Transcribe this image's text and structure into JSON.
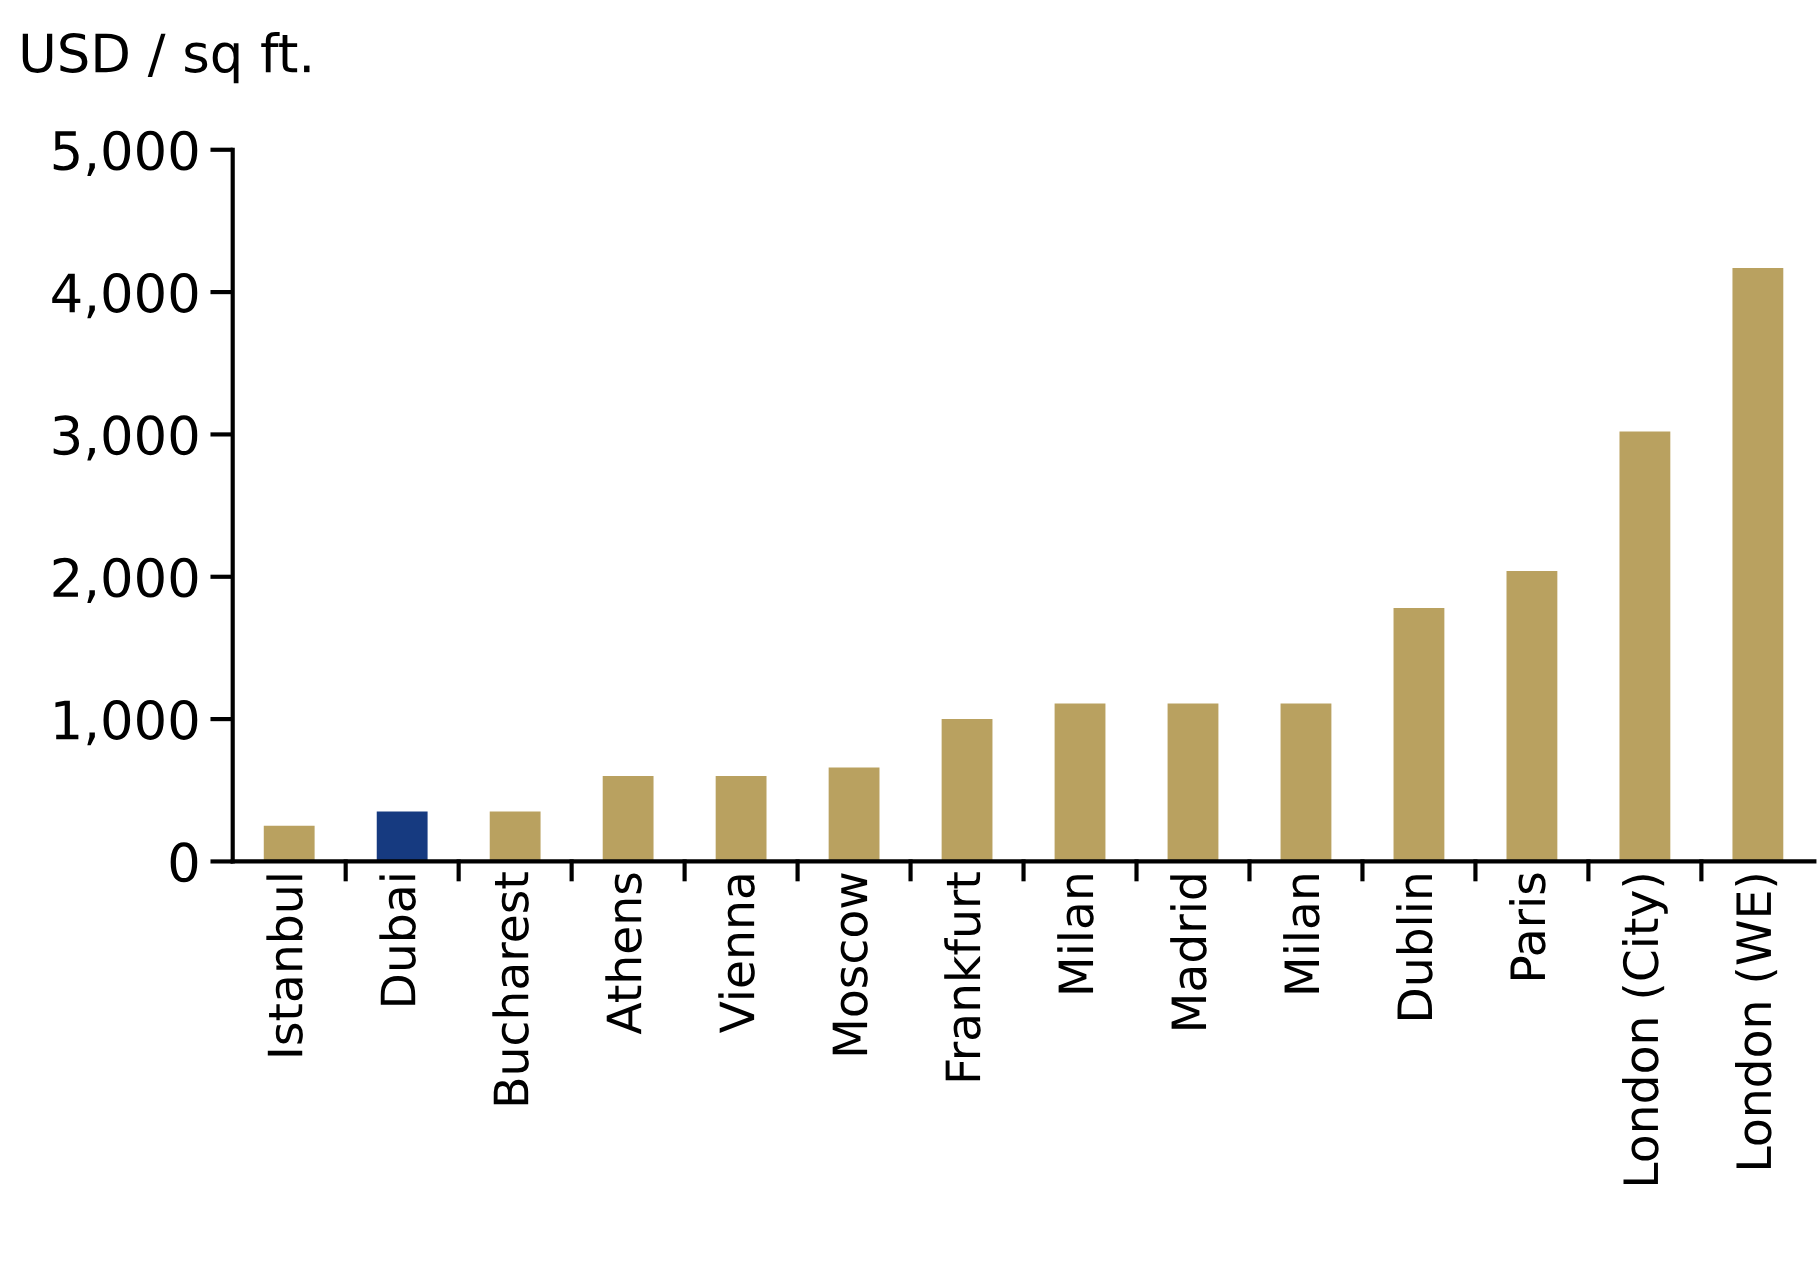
{
  "chart_data": {
    "type": "bar",
    "ylabel": "USD / sq ft.",
    "categories": [
      "Istanbul",
      "Dubai",
      "Bucharest",
      "Athens",
      "Vienna",
      "Moscow",
      "Frankfurt",
      "Milan",
      "Madrid",
      "Milan",
      "Dublin",
      "Paris",
      "London (City)",
      "London (WE)"
    ],
    "values": [
      250,
      350,
      350,
      600,
      600,
      660,
      1000,
      1110,
      1110,
      1110,
      1780,
      2040,
      3020,
      4170
    ],
    "colors": [
      "#b9a160",
      "#163a80",
      "#b9a160",
      "#b9a160",
      "#b9a160",
      "#b9a160",
      "#b9a160",
      "#b9a160",
      "#b9a160",
      "#b9a160",
      "#b9a160",
      "#b9a160",
      "#b9a160",
      "#b9a160"
    ],
    "ylim": [
      0,
      5000
    ],
    "yticks": [
      {
        "value": 0,
        "label": "0"
      },
      {
        "value": 1000,
        "label": "1,000"
      },
      {
        "value": 2000,
        "label": "2,000"
      },
      {
        "value": 3000,
        "label": "3,000"
      },
      {
        "value": 4000,
        "label": "4,000"
      },
      {
        "value": 5000,
        "label": "5,000"
      }
    ],
    "grid": false
  }
}
